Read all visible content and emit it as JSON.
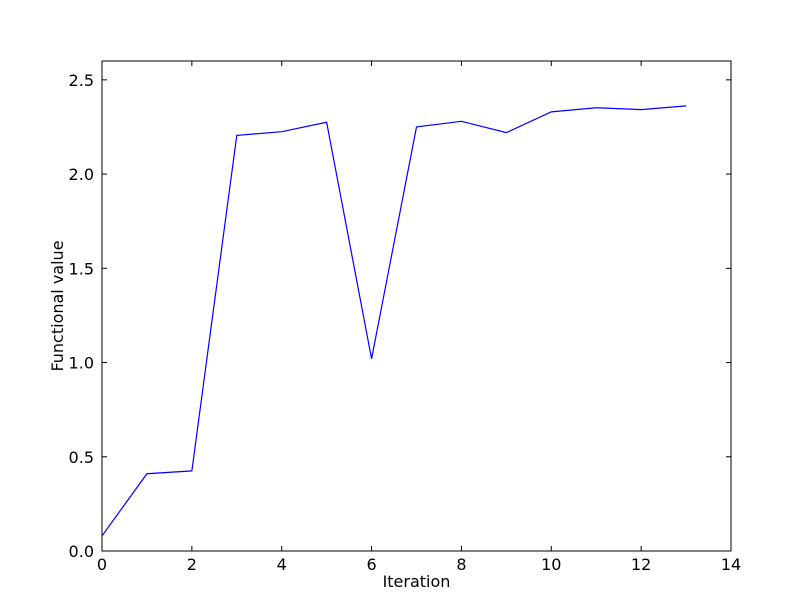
{
  "chart_data": {
    "type": "line",
    "title": "",
    "xlabel": "Iteration",
    "ylabel": "Functional value",
    "xlim": [
      0,
      14
    ],
    "ylim": [
      0,
      2.6
    ],
    "xticks": [
      0,
      2,
      4,
      6,
      8,
      10,
      12,
      14
    ],
    "yticks": [
      0.0,
      0.5,
      1.0,
      1.5,
      2.0,
      2.5
    ],
    "xtick_labels": [
      "0",
      "2",
      "4",
      "6",
      "8",
      "10",
      "12",
      "14"
    ],
    "ytick_labels": [
      "0.0",
      "0.5",
      "1.0",
      "1.5",
      "2.0",
      "2.5"
    ],
    "grid": false,
    "series": [
      {
        "color": "#0000ff",
        "x": [
          0,
          1,
          2,
          3,
          4,
          5,
          6,
          7,
          8,
          9,
          10,
          11,
          12,
          13
        ],
        "y": [
          0.08,
          0.41,
          0.425,
          2.205,
          2.225,
          2.275,
          1.02,
          2.25,
          2.28,
          2.22,
          2.33,
          2.352,
          2.342,
          2.362
        ]
      }
    ]
  }
}
